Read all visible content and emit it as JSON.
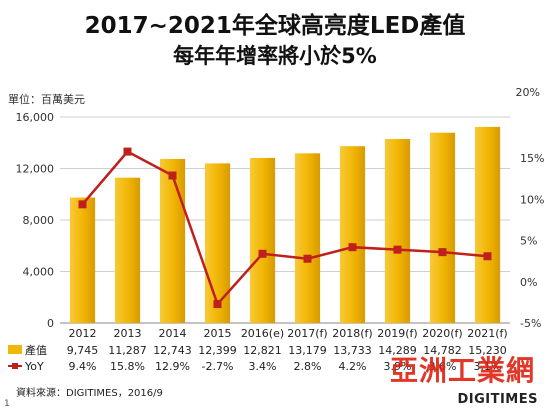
{
  "title_line1": "2017~2021年全球高亮度LED產值",
  "title_line2": "每年年增率將小於5%",
  "left_axis_label": "單位：百萬美元",
  "right_axis_label": "20%",
  "source": "資料來源：DIGITIMES，2016/9",
  "page_number": "1",
  "brand": "DIGITIMES",
  "watermark": "亞洲工業網",
  "colors": {
    "bar": "#f2b705",
    "line": "#c0201c",
    "grid": "#cfcfcf"
  },
  "chart_data": {
    "type": "bar",
    "categories": [
      "2012",
      "2013",
      "2014",
      "2015",
      "2016(e)",
      "2017(f)",
      "2018(f)",
      "2019(f)",
      "2020(f)",
      "2021(f)"
    ],
    "series": [
      {
        "name": "產值",
        "type": "bar",
        "axis": "left",
        "values": [
          9745,
          11287,
          12743,
          12399,
          12821,
          13179,
          13733,
          14289,
          14782,
          15230
        ],
        "labels": [
          "9,745",
          "11,287",
          "12,743",
          "12,399",
          "12,821",
          "13,179",
          "13,733",
          "14,289",
          "14,782",
          "15,230"
        ]
      },
      {
        "name": "YoY",
        "type": "line",
        "axis": "right",
        "values": [
          9.4,
          15.8,
          12.9,
          -2.7,
          3.4,
          2.8,
          4.2,
          3.9,
          3.6,
          3.1
        ],
        "labels": [
          "9.4%",
          "15.8%",
          "12.9%",
          "-2.7%",
          "3.4%",
          "2.8%",
          "4.2%",
          "3.9%",
          "3.6%",
          "3.1%"
        ]
      }
    ],
    "left_ticks": [
      "0",
      "4,000",
      "8,000",
      "12,000",
      "16,000"
    ],
    "left_tick_values": [
      0,
      4000,
      8000,
      12000,
      16000
    ],
    "right_ticks": [
      "-5%",
      "0%",
      "5%",
      "10%",
      "15%"
    ],
    "right_tick_values": [
      -5,
      0,
      5,
      10,
      15
    ],
    "ylim_left": [
      0,
      16000
    ],
    "ylim_right": [
      -5,
      20
    ],
    "grid": true,
    "legend": "table-below"
  }
}
